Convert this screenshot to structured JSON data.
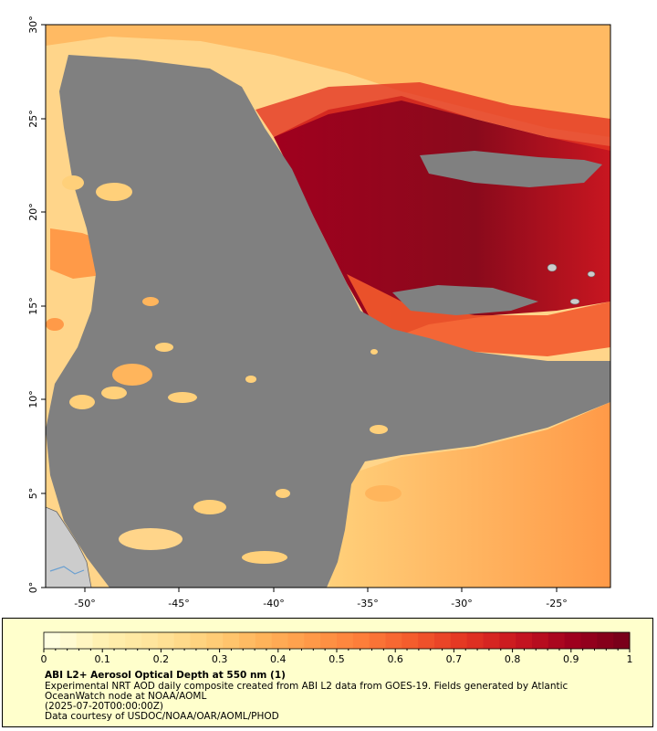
{
  "map": {
    "lon_ticks": [
      "-50°",
      "-45°",
      "-40°",
      "-35°",
      "-30°",
      "-25°"
    ],
    "lat_ticks": [
      "0°",
      "5°",
      "10°",
      "15°",
      "20°",
      "25°",
      "30°"
    ],
    "extent": {
      "lon_min": -52.2,
      "lon_max": -22.2,
      "lat_min": 0,
      "lat_max": 30
    },
    "colors": {
      "no_data": "#808080",
      "land": "#cccccc",
      "river": "#6a9fd0"
    }
  },
  "legend": {
    "colorbar_ticks": [
      "0",
      "0.1",
      "0.2",
      "0.3",
      "0.4",
      "0.5",
      "0.6",
      "0.7",
      "0.8",
      "0.9",
      "1"
    ],
    "colorbar_range": [
      0,
      1
    ],
    "colormap": [
      "#ffffe0",
      "#fff0b0",
      "#ffe49a",
      "#ffd07a",
      "#ffb55c",
      "#ff9a48",
      "#fd7d3a",
      "#f35a2c",
      "#e33422",
      "#c81620",
      "#a0001e",
      "#7a001a"
    ],
    "title": "ABI L2+ Aerosol Optical Depth at 550 nm (1)",
    "line1": "Experimental NRT AOD daily composite created from ABI L2 data from GOES-19. Fields generated by Atlantic",
    "line2": "OceanWatch node at NOAA/AOML",
    "line3": "(2025-07-20T00:00:00Z)",
    "line4": "Data courtesy of USDOC/NOAA/OAR/AOML/PHOD"
  }
}
